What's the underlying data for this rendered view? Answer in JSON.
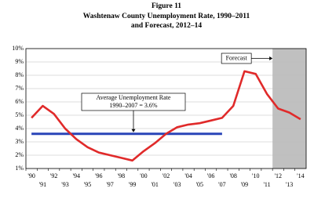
{
  "chart_data": {
    "type": "line",
    "title": "Figure 11",
    "subtitle": [
      "Washtenaw County Unemployment Rate, 1990–2011",
      "and Forecast, 2012–14"
    ],
    "categories": [
      "'90",
      "'91",
      "'92",
      "'93",
      "'94",
      "'95",
      "'96",
      "'97",
      "'98",
      "'99",
      "'00",
      "'01",
      "'02",
      "'03",
      "'04",
      "'05",
      "'06",
      "'07",
      "'08",
      "'09",
      "'10",
      "'11",
      "'12",
      "'13",
      "'14"
    ],
    "series": [
      {
        "name": "Unemployment rate",
        "color": "#e02a2a",
        "values": [
          4.8,
          5.7,
          5.1,
          4.0,
          3.2,
          2.6,
          2.2,
          2.0,
          1.8,
          1.6,
          2.3,
          2.9,
          3.6,
          4.1,
          4.3,
          4.4,
          4.6,
          4.8,
          5.7,
          8.3,
          8.1,
          6.6,
          5.5,
          5.2,
          4.7
        ]
      }
    ],
    "ylim": [
      1,
      10
    ],
    "yticks": [
      {
        "value": 1,
        "label": "1%"
      },
      {
        "value": 2,
        "label": "2%"
      },
      {
        "value": 3,
        "label": "3%"
      },
      {
        "value": 4,
        "label": "4%"
      },
      {
        "value": 5,
        "label": "5%"
      },
      {
        "value": 6,
        "label": "6%"
      },
      {
        "value": 7,
        "label": "7%"
      },
      {
        "value": 8,
        "label": "8%"
      },
      {
        "value": 9,
        "label": "9%"
      },
      {
        "value": 10,
        "label": "10%"
      }
    ],
    "grid": true,
    "average": {
      "value": 3.6,
      "start": "'90",
      "end": "'07",
      "color": "#2a45b8",
      "label": [
        "Average Unemployment Rate",
        "1990–2007 = 3.6%"
      ]
    },
    "forecast": {
      "label": "Forecast",
      "start": "'12",
      "color": "#c0c0c0"
    }
  }
}
